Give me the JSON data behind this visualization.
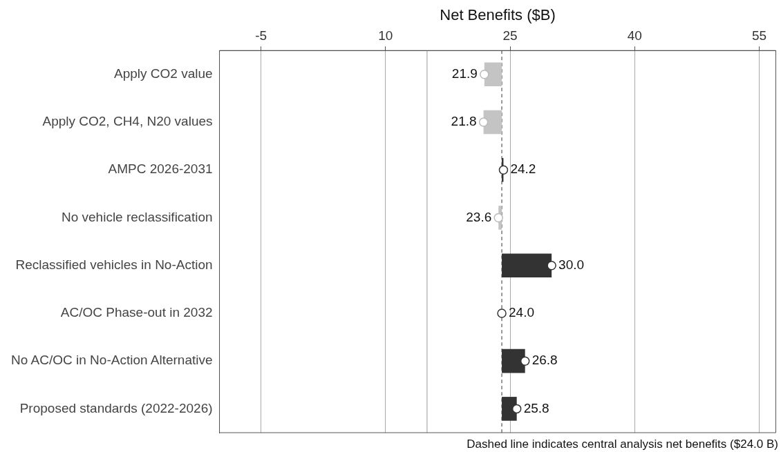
{
  "chart_data": {
    "type": "bar",
    "orientation": "horizontal",
    "xlabel": "Net Benefits ($B)",
    "categories": [
      "Apply CO2 value",
      "Apply CO2, CH4, N20 values",
      "AMPC 2026-2031",
      "No vehicle reclassification",
      "Reclassified vehicles in No-Action",
      "AC/OC Phase-out in 2032",
      "No AC/OC in No-Action Alternative",
      "Proposed standards (2022-2026)"
    ],
    "series": [
      {
        "base": [
          24.0,
          24.0,
          24.0,
          24.0,
          24.0,
          null,
          24.0,
          24.0
        ],
        "values": [
          -2.1,
          -2.2,
          0.2,
          -0.4,
          6.0,
          null,
          2.8,
          1.8
        ],
        "colors": [
          "#c4c4c4",
          "#c4c4c4",
          "#333333",
          "#c4c4c4",
          "#333333",
          "#333333",
          "#333333",
          "#333333"
        ]
      },
      {
        "type": "scatter",
        "x": [
          "Apply CO2 value",
          "Apply CO2, CH4, N20 values",
          "AMPC 2026-2031",
          "No vehicle reclassification",
          "Reclassified vehicles in No-Action",
          "AC/OC Phase-out in 2032",
          "No AC/OC in No-Action Alternative",
          "Proposed standards (2022-2026)"
        ],
        "values": [
          21.9,
          21.8,
          24.2,
          23.6,
          30.0,
          24.0,
          26.8,
          25.8
        ],
        "value_labels": [
          "21.9",
          "21.8",
          "24.2",
          "23.6",
          "30.0",
          "24.0",
          "26.8",
          "25.8"
        ],
        "colors": [
          "#bbbbbb",
          "#bbbbbb",
          "#333333",
          "#bbbbbb",
          "#333333",
          "#333333",
          "#333333",
          "#333333"
        ]
      }
    ],
    "xlim": [
      -10,
      57
    ],
    "xticks": [
      -5,
      10,
      25,
      40,
      55
    ],
    "grid": "x",
    "marker": "circle",
    "legend": false,
    "ref_lines": [
      {
        "axis": "x",
        "value": 24.0,
        "line_style": "dashed",
        "color": "#333333"
      },
      {
        "axis": "x",
        "value": 15,
        "line_style": "solid",
        "color": "#999999"
      }
    ],
    "annotations": [
      "Dashed line indicates central analysis net benefits ($24.0 B)"
    ]
  }
}
